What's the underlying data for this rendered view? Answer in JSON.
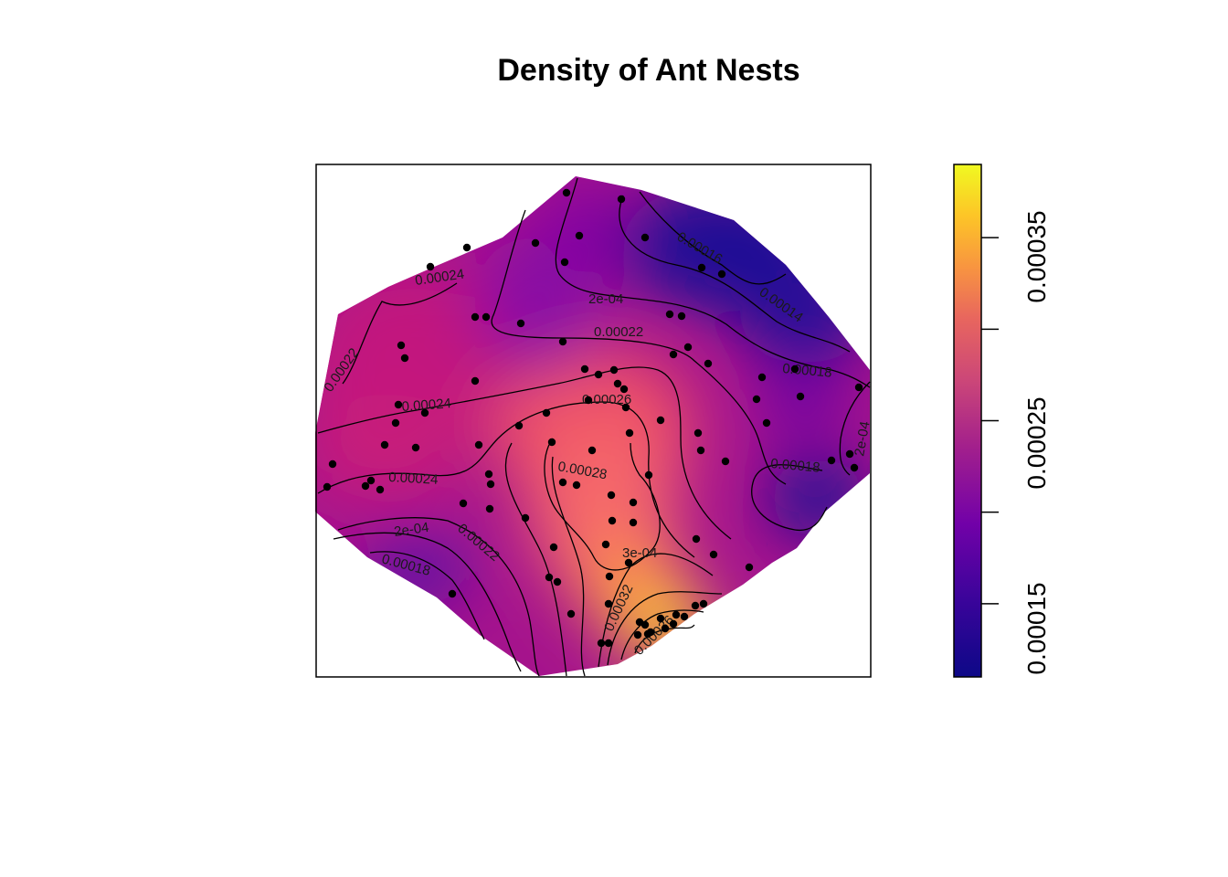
{
  "chart_data": {
    "type": "heatmap",
    "title": "Density of Ant Nests",
    "xlabel": "",
    "ylabel": "",
    "colormap": "plasma",
    "colors": [
      "#0d0887",
      "#6a00a8",
      "#b12a90",
      "#e16462",
      "#fca636",
      "#f0f921"
    ],
    "legend": {
      "position": "right",
      "range": [
        0.00011,
        0.00039
      ],
      "ticks": [
        0.00015,
        0.0002,
        0.00025,
        0.0003,
        0.00035
      ],
      "tick_labels": [
        "0.00015",
        "0.00025",
        "0.00035"
      ]
    },
    "contour_labels": [
      "0.00016",
      "0.00014",
      "2e-04",
      "0.00018",
      "0.00022",
      "0.00024",
      "0.00026",
      "0.00028",
      "3e-04",
      "0.00032",
      "0.00036"
    ],
    "grid": false,
    "points_count": 102
  }
}
